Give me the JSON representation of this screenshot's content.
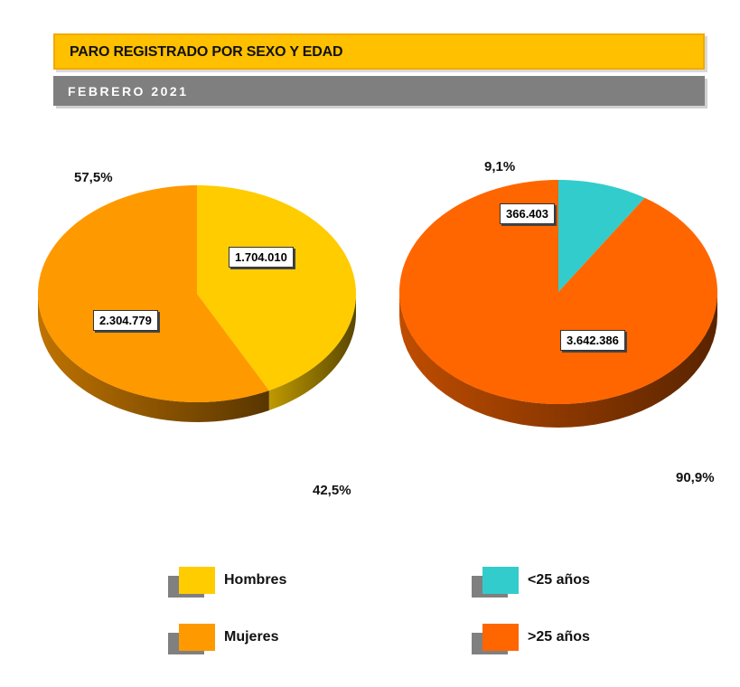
{
  "header": {
    "title": "PARO REGISTRADO POR SEXO Y EDAD",
    "subtitle": "FEBRERO 2021"
  },
  "chart_data": [
    {
      "type": "pie",
      "categories": [
        "Hombres",
        "Mujeres"
      ],
      "values": [
        1704010,
        2304779
      ],
      "value_labels": [
        "1.704.010",
        "2.304.779"
      ],
      "percent_labels": [
        "42,5%",
        "57,5%"
      ],
      "colors": [
        "#ffcc00",
        "#ff9900"
      ],
      "legend": "bottom"
    },
    {
      "type": "pie",
      "categories": [
        "<25 años",
        ">25 años"
      ],
      "values": [
        366403,
        3642386
      ],
      "value_labels": [
        "366.403",
        "3.642.386"
      ],
      "percent_labels": [
        "9,1%",
        "90,9%"
      ],
      "colors": [
        "#33cccc",
        "#ff6600"
      ],
      "legend": "bottom"
    }
  ]
}
